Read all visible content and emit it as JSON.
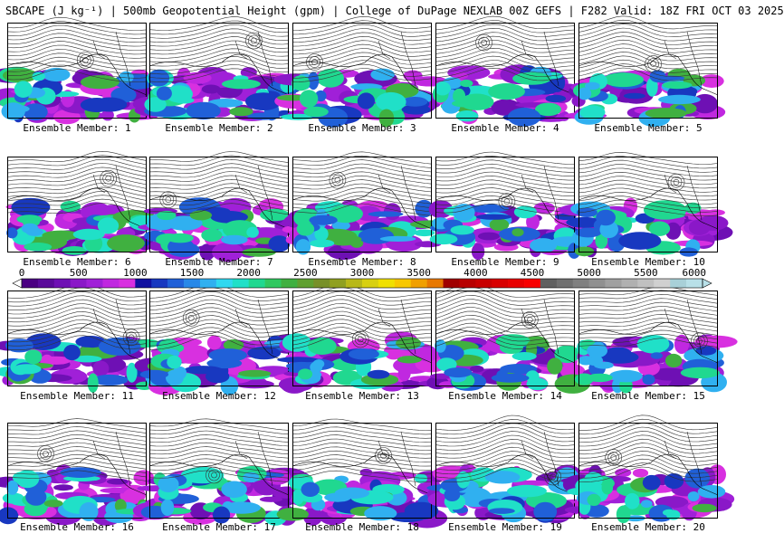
{
  "title": "SBCAPE (J kg⁻¹) | 500mb Geopotential Height (gpm) | College of DuPage NEXLAB 00Z GEFS | F282 Valid: 18Z FRI OCT 03 2025",
  "members": [
    {
      "label": "Ensemble Member: 1"
    },
    {
      "label": "Ensemble Member: 2"
    },
    {
      "label": "Ensemble Member: 3"
    },
    {
      "label": "Ensemble Member: 4"
    },
    {
      "label": "Ensemble Member: 5"
    },
    {
      "label": "Ensemble Member: 6"
    },
    {
      "label": "Ensemble Member: 7"
    },
    {
      "label": "Ensemble Member: 8"
    },
    {
      "label": "Ensemble Member: 9"
    },
    {
      "label": "Ensemble Member: 10"
    },
    {
      "label": "Ensemble Member: 11"
    },
    {
      "label": "Ensemble Member: 12"
    },
    {
      "label": "Ensemble Member: 13"
    },
    {
      "label": "Ensemble Member: 14"
    },
    {
      "label": "Ensemble Member: 15"
    },
    {
      "label": "Ensemble Member: 16"
    },
    {
      "label": "Ensemble Member: 17"
    },
    {
      "label": "Ensemble Member: 18"
    },
    {
      "label": "Ensemble Member: 19"
    },
    {
      "label": "Ensemble Member: 20"
    }
  ],
  "colorbar": {
    "min": 0,
    "max": 6000,
    "tick_labels": [
      "0",
      "500",
      "1000",
      "1500",
      "2000",
      "2500",
      "3000",
      "3500",
      "4000",
      "4500",
      "5000",
      "5500",
      "6000"
    ],
    "colors": [
      "#4b0082",
      "#5a0a9a",
      "#6e10b4",
      "#8a18c8",
      "#a020d8",
      "#c028e0",
      "#d830e0",
      "#1010a0",
      "#1838c0",
      "#2060d8",
      "#2888e8",
      "#30b0f0",
      "#30d8f0",
      "#20e0c8",
      "#20d890",
      "#30c860",
      "#40b040",
      "#60a030",
      "#789028",
      "#90a020",
      "#b8b818",
      "#d8d010",
      "#f0e000",
      "#f8c800",
      "#f0a000",
      "#e87800",
      "#a00000",
      "#b80000",
      "#c80000",
      "#d80000",
      "#e80000",
      "#f80000",
      "#606060",
      "#707070",
      "#808080",
      "#909090",
      "#a0a0a0",
      "#b0b0b0",
      "#c0c0c0",
      "#d0d0d0",
      "#a8d0d8",
      "#b8e0e8"
    ]
  }
}
